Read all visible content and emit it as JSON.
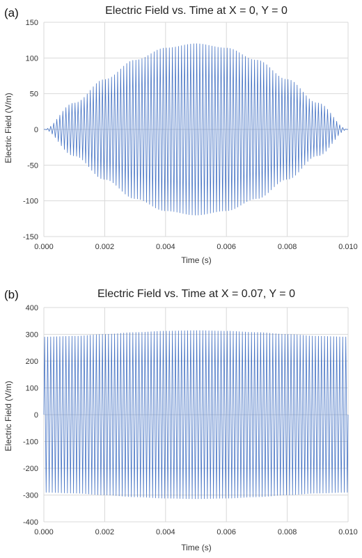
{
  "chart_data": [
    {
      "type": "line",
      "panel_label": "(a)",
      "title": "Electric Field vs. Time at X = 0, Y = 0",
      "xlabel": "Time (s)",
      "ylabel": "Electric Field (V/m)",
      "xlim": [
        0,
        0.01
      ],
      "ylim": [
        -150,
        150
      ],
      "x_ticks": [
        0,
        0.002,
        0.004,
        0.006,
        0.008,
        0.01
      ],
      "x_tick_labels": [
        "0.000",
        "0.002",
        "0.004",
        "0.006",
        "0.008",
        "0.010"
      ],
      "y_ticks": [
        150,
        100,
        50,
        0,
        -50,
        -100,
        -150
      ],
      "y_tick_labels": [
        "150",
        "100",
        "50",
        "0",
        "-50",
        "-100",
        "-150"
      ],
      "grid": true,
      "series": [
        {
          "color": "#4472c4",
          "signal": "amplitude-modulated oscillation",
          "oscillation_cycles": 100,
          "envelope": {
            "x": [
              0,
              0.001,
              0.002,
              0.003,
              0.004,
              0.005,
              0.006,
              0.007,
              0.008,
              0.009,
              0.01
            ],
            "y": [
              0,
              37,
              70,
              97,
              114,
              120,
              114,
              97,
              70,
              37,
              0
            ]
          }
        }
      ]
    },
    {
      "type": "line",
      "panel_label": "(b)",
      "title": "Electric Field vs. Time at X = 0.07, Y = 0",
      "xlabel": "Time (s)",
      "ylabel": "Electric Field (V/m)",
      "xlim": [
        0,
        0.01
      ],
      "ylim": [
        -400,
        400
      ],
      "x_ticks": [
        0,
        0.002,
        0.004,
        0.006,
        0.008,
        0.01
      ],
      "x_tick_labels": [
        "0.000",
        "0.002",
        "0.004",
        "0.006",
        "0.008",
        "0.010"
      ],
      "y_ticks": [
        400,
        300,
        200,
        100,
        0,
        -100,
        -200,
        -300,
        -400
      ],
      "y_tick_labels": [
        "400",
        "300",
        "200",
        "100",
        "0",
        "-100",
        "-200",
        "-300",
        "-400"
      ],
      "grid": true,
      "series": [
        {
          "color": "#4472c4",
          "signal": "amplitude-modulated oscillation",
          "oscillation_cycles": 100,
          "envelope": {
            "x": [
              0,
              0.001,
              0.002,
              0.003,
              0.004,
              0.005,
              0.006,
              0.007,
              0.008,
              0.009,
              0.01
            ],
            "y": [
              290,
              293,
              300,
              307,
              312,
              314,
              312,
              307,
              300,
              293,
              290
            ]
          }
        }
      ]
    }
  ]
}
